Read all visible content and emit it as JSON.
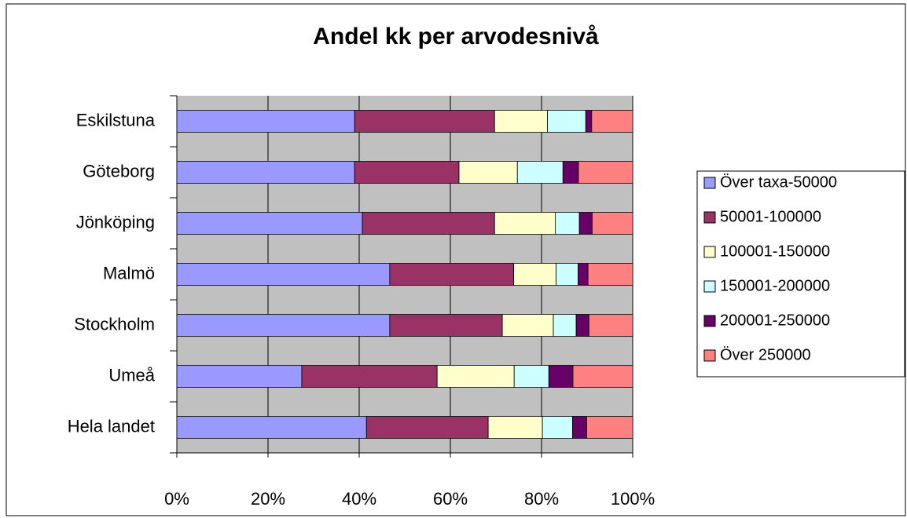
{
  "chart_data": {
    "type": "stacked-barh",
    "title": "Andel kk per arvodesnivå",
    "categories": [
      "Eskilstuna",
      "Göteborg",
      "Jönköping",
      "Malmö",
      "Stockholm",
      "Umeå",
      "Hela landet"
    ],
    "series": [
      {
        "name": "Över taxa-50000",
        "color": "#9999ff",
        "values": [
          39.0,
          39.0,
          40.7,
          46.7,
          46.7,
          27.4,
          41.6
        ]
      },
      {
        "name": "50001-100000",
        "color": "#993366",
        "values": [
          30.7,
          22.9,
          29.0,
          27.2,
          24.7,
          29.7,
          26.7
        ]
      },
      {
        "name": "100001-150000",
        "color": "#ffffcc",
        "values": [
          11.6,
          12.8,
          13.3,
          9.3,
          11.2,
          16.9,
          11.9
        ]
      },
      {
        "name": "150001-200000",
        "color": "#ccffff",
        "values": [
          8.4,
          10.0,
          5.3,
          4.8,
          5.0,
          7.6,
          6.6
        ]
      },
      {
        "name": "200001-250000",
        "color": "#660066",
        "values": [
          1.3,
          3.4,
          2.8,
          2.2,
          2.8,
          5.3,
          3.1
        ]
      },
      {
        "name": "Över 250000",
        "color": "#ff8080",
        "values": [
          9.0,
          11.9,
          8.9,
          9.8,
          9.6,
          13.1,
          10.1
        ]
      }
    ],
    "xlim": [
      0,
      100
    ],
    "xticks": [
      {
        "value": 0,
        "label": "0%"
      },
      {
        "value": 20,
        "label": "20%"
      },
      {
        "value": 40,
        "label": "40%"
      },
      {
        "value": 60,
        "label": "60%"
      },
      {
        "value": 80,
        "label": "80%"
      },
      {
        "value": 100,
        "label": "100%"
      }
    ],
    "grid": true
  }
}
